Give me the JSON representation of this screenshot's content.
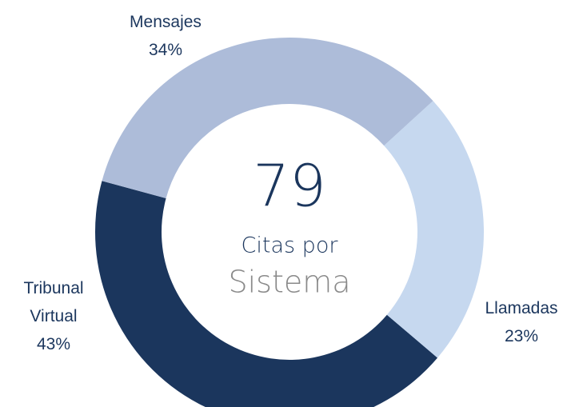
{
  "chart_data": {
    "type": "pie",
    "categories": [
      "Mensajes",
      "Llamadas",
      "Tribunal Virtual"
    ],
    "values": [
      34,
      23,
      43
    ],
    "value_labels": [
      "34%",
      "23%",
      "43%"
    ],
    "colors": [
      "#adbcd9",
      "#c6d8ef",
      "#1b365d"
    ],
    "center_value": "79",
    "center_text": [
      "Citas por",
      "Sistema"
    ]
  }
}
